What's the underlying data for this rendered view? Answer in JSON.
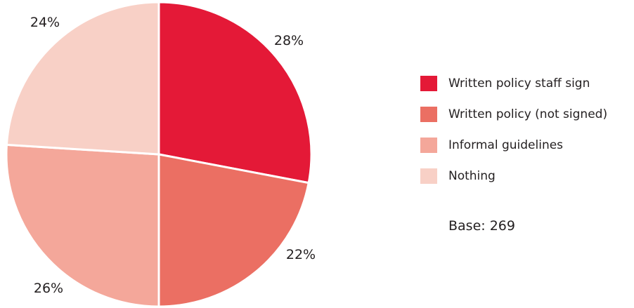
{
  "chart_data": {
    "type": "pie",
    "categories": [
      "Written policy staff sign",
      "Written policy (not signed)",
      "Informal guidelines",
      "Nothing"
    ],
    "values": [
      28,
      22,
      26,
      24
    ],
    "value_labels": [
      "28%",
      "22%",
      "26%",
      "24%"
    ],
    "colors": [
      "#e41937",
      "#eb6f63",
      "#f4a79a",
      "#f8d0c6"
    ],
    "legend_position": "right",
    "title": "",
    "note": "Base: 269"
  }
}
